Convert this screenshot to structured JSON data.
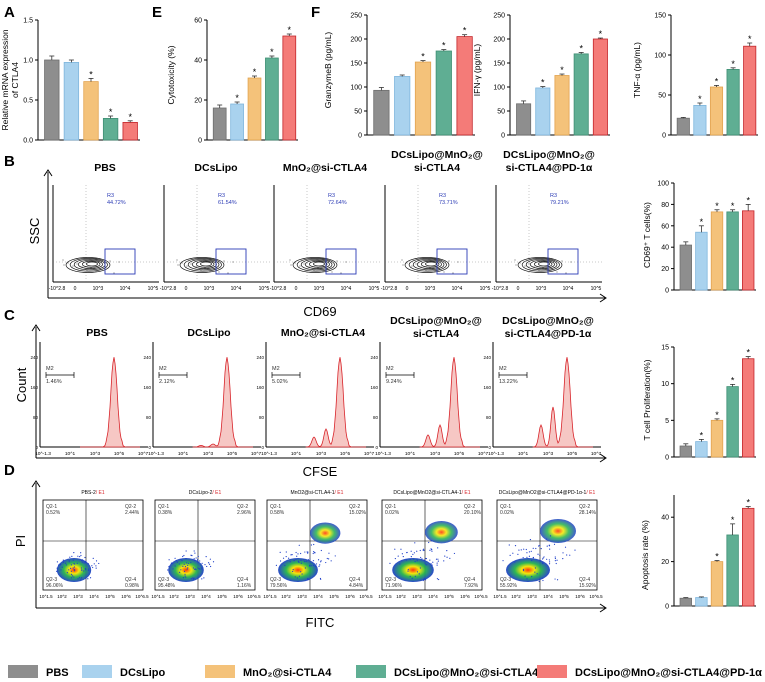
{
  "colors": {
    "PBS": "#8e8e8e",
    "DCsLipo": "#a9d2ee",
    "MnO2@si-CTLA4": "#f4c27a",
    "DCsLipo@MnO2@si-CTLA4": "#5fae93",
    "DCsLipo@MnO2@si-CTLA4@PD-1a": "#f47b78",
    "gate": "#2b3bb5",
    "histogram": "#d8242a"
  },
  "legend": {
    "items": [
      "PBS",
      "DCsLipo",
      "MnO₂@si-CTLA4",
      "DCsLipo@MnO₂@si-CTLA4",
      "DCsLipo@MnO₂@si-CTLA4@PD-1α"
    ]
  },
  "panel_labels": {
    "A": "A",
    "B": "B",
    "C": "C",
    "D": "D",
    "E": "E",
    "F": "F"
  },
  "chart_data": [
    {
      "id": "A",
      "type": "bar",
      "ylabel": "Relative mRNA expression of CTLA4",
      "ylim": [
        0,
        1.5
      ],
      "yticks": [
        "0.0",
        "0.5",
        "1.0",
        "1.5"
      ],
      "values": [
        1.0,
        0.97,
        0.73,
        0.27,
        0.22
      ],
      "errors": [
        0.05,
        0.03,
        0.04,
        0.03,
        0.02
      ],
      "significance": [
        "",
        "",
        "*",
        "*",
        "*"
      ]
    },
    {
      "id": "E",
      "type": "bar",
      "ylabel": "Cytotoxicity (%)",
      "ylim": [
        0,
        60
      ],
      "yticks": [
        "0",
        "20",
        "40",
        "60"
      ],
      "values": [
        16,
        18,
        31,
        41,
        52
      ],
      "errors": [
        1.5,
        1,
        1,
        1,
        1
      ],
      "significance": [
        "",
        "*",
        "*",
        "*",
        "*"
      ]
    },
    {
      "id": "F1",
      "type": "bar",
      "ylabel": "GranzymeB (pg/mL)",
      "ylim": [
        0,
        250
      ],
      "yticks": [
        "0",
        "50",
        "100",
        "150",
        "200",
        "250"
      ],
      "values": [
        93,
        122,
        152,
        175,
        205
      ],
      "errors": [
        6,
        3,
        3,
        3,
        4
      ],
      "significance": [
        "",
        "",
        "*",
        "*",
        "*"
      ]
    },
    {
      "id": "F2",
      "type": "bar",
      "ylabel": "IFN-γ (pg/mL)",
      "ylim": [
        0,
        250
      ],
      "yticks": [
        "0",
        "50",
        "100",
        "150",
        "200",
        "250"
      ],
      "values": [
        65,
        98,
        124,
        169,
        200
      ],
      "errors": [
        6,
        3,
        3,
        3,
        2
      ],
      "significance": [
        "",
        "*",
        "*",
        "*",
        "*"
      ]
    },
    {
      "id": "F3",
      "type": "bar",
      "ylabel": "TNF-α (pg/mL)",
      "ylim": [
        0,
        150
      ],
      "yticks": [
        "0",
        "50",
        "100",
        "150"
      ],
      "values": [
        21,
        37,
        60,
        82,
        111
      ],
      "errors": [
        1,
        3,
        2,
        2,
        4
      ],
      "significance": [
        "",
        "*",
        "*",
        "*",
        "*"
      ]
    },
    {
      "id": "B",
      "type": "bar",
      "ylabel": "CD69⁺ T cells(%)",
      "ylim": [
        0,
        100
      ],
      "yticks": [
        "0",
        "20",
        "40",
        "60",
        "80",
        "100"
      ],
      "values": [
        42,
        54,
        73,
        73,
        74
      ],
      "errors": [
        3,
        6,
        2,
        2,
        6
      ],
      "significance": [
        "",
        "*",
        "*",
        "*",
        "*"
      ]
    },
    {
      "id": "C",
      "type": "bar",
      "ylabel": "T cell Proliferation(%)",
      "ylim": [
        0,
        15
      ],
      "yticks": [
        "0",
        "5",
        "10",
        "15"
      ],
      "values": [
        1.5,
        2.1,
        5.0,
        9.6,
        13.4
      ],
      "errors": [
        0.3,
        0.3,
        0.2,
        0.3,
        0.3
      ],
      "significance": [
        "",
        "*",
        "*",
        "*",
        "*"
      ]
    },
    {
      "id": "D",
      "type": "bar",
      "ylabel": "Apoptosis rate (%)",
      "ylim": [
        0,
        50
      ],
      "yticks": [
        "0",
        "20",
        "40"
      ],
      "values": [
        3.5,
        3.8,
        20,
        32,
        44
      ],
      "errors": [
        0.3,
        0.3,
        0.5,
        5,
        0.8
      ],
      "significance": [
        "",
        "",
        "*",
        "*",
        "*"
      ]
    }
  ],
  "panelB": {
    "ylabel": "SSC",
    "xlabel": "CD69",
    "gate_name": "R3",
    "titles": [
      "PBS",
      "DCsLipo",
      "MnO₂@si-CTLA4",
      "DCsLipo@MnO₂@",
      "si-CTLA4",
      "DCsLipo@MnO₂@",
      "si-CTLA4@PD-1α"
    ],
    "gate_values": [
      "44.72%",
      "61.54%",
      "72.64%",
      "73.71%",
      "79.21%"
    ],
    "xticks": [
      "-10^2.8",
      "0",
      "10^3",
      "10^4",
      "10^5"
    ]
  },
  "panelC": {
    "ylabel": "Count",
    "xlabel": "CFSE",
    "marker": "M2",
    "titles": [
      "PBS",
      "DCsLipo",
      "MnO₂@si-CTLA4",
      "DCsLipo@MnO₂@",
      "si-CTLA4",
      "DCsLipo@MnO₂@",
      "si-CTLA4@PD-1α"
    ],
    "marker_values": [
      "1.46%",
      "2.12%",
      "5.02%",
      "9.24%",
      "13.22%"
    ],
    "xticks": [
      "10^-1.3",
      "10^1",
      "10^3",
      "10^5",
      "10^7"
    ]
  },
  "panelD": {
    "ylabel": "PI",
    "xlabel": "FITC",
    "titles": [
      "PBS-2",
      "DCsLipo-2",
      "MnO2@si-CTLA4-1",
      "DCsLipo@MnO2@si-CTLA4-1",
      "DCsLipo@MnO2@si-CTLA4@PD-1α-1"
    ],
    "title_suffix": "/ E1",
    "quadrants": [
      {
        "q1": "0.52%",
        "q2": "2.44%",
        "q3": "96.06%",
        "q4": "0.98%"
      },
      {
        "q1": "0.38%",
        "q2": "2.96%",
        "q3": "95.48%",
        "q4": "1.16%"
      },
      {
        "q1": "0.58%",
        "q2": "15.02%",
        "q3": "79.56%",
        "q4": "4.84%"
      },
      {
        "q1": "0.02%",
        "q2": "20.10%",
        "q3": "71.96%",
        "q4": "7.92%"
      },
      {
        "q1": "0.02%",
        "q2": "28.14%",
        "q3": "55.92%",
        "q4": "15.92%"
      }
    ],
    "quadrant_names": [
      "Q2-1",
      "Q2-2",
      "Q2-3",
      "Q2-4"
    ],
    "xticks": [
      "10^1.5",
      "10^2",
      "10^3",
      "10^4",
      "10^5",
      "10^6",
      "10^6.5"
    ]
  }
}
